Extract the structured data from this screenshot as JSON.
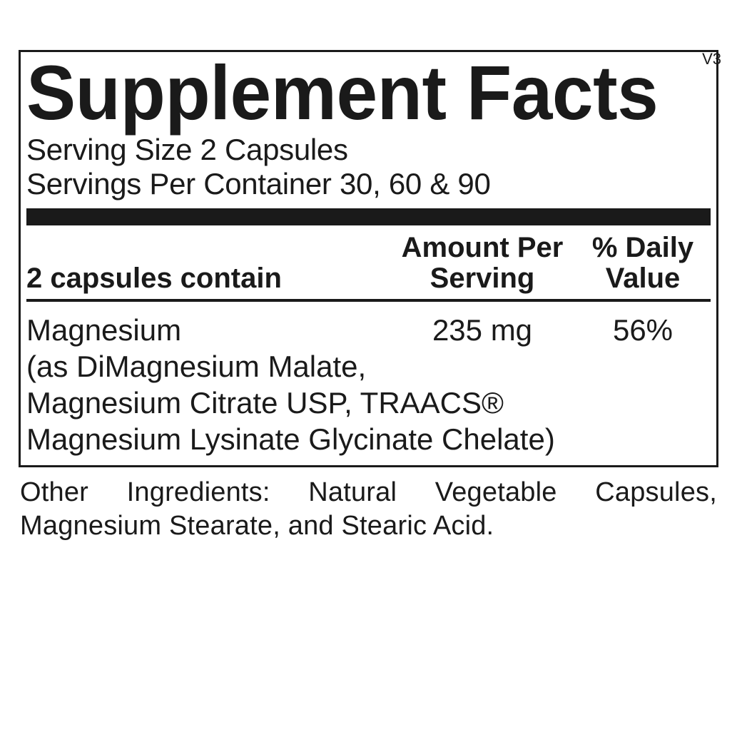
{
  "version": "V3",
  "title": "Supplement Facts",
  "serving_size": "Serving Size 2 Capsules",
  "servings_per_container": "Servings Per Container 30, 60 & 90",
  "headers": {
    "col1": "2 capsules contain",
    "col2_line1": "Amount Per",
    "col2_line2": "Serving",
    "col3_line1": "% Daily",
    "col3_line2": "Value"
  },
  "row": {
    "name": "Magnesium",
    "amount": "235 mg",
    "dv": "56%",
    "sub1": "(as DiMagnesium Malate,",
    "sub2": "Magnesium Citrate USP, TRAACS®",
    "sub3": "Magnesium Lysinate Glycinate Chelate)"
  },
  "other_ingredients": "Other Ingredients: Natural Vegetable Capsules, Magnesium Stearate, and Stearic Acid."
}
